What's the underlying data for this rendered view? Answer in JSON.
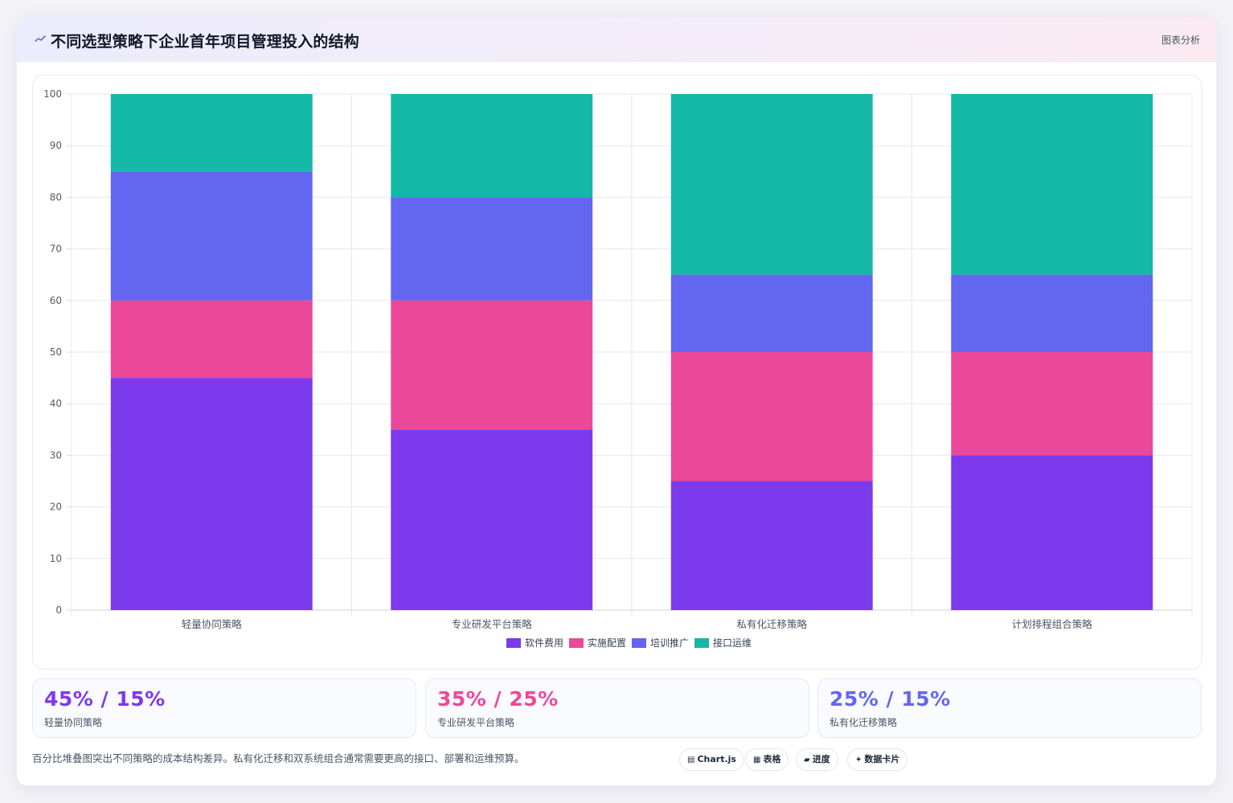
{
  "header": {
    "title": "不同选型策略下企业首年项目管理投入的结构",
    "tag": "图表分析"
  },
  "chart_data": {
    "type": "bar",
    "stacked": true,
    "categories": [
      "轻量协同策略",
      "专业研发平台策略",
      "私有化迁移策略",
      "计划排程组合策略"
    ],
    "series": [
      {
        "name": "软件费用",
        "color": "#7c3aed",
        "values": [
          45,
          35,
          25,
          30
        ]
      },
      {
        "name": "实施配置",
        "color": "#ec4899",
        "values": [
          15,
          25,
          25,
          20
        ]
      },
      {
        "name": "培训推广",
        "color": "#6366f1",
        "values": [
          25,
          20,
          15,
          15
        ]
      },
      {
        "name": "接口运维",
        "color": "#14b8a6",
        "values": [
          15,
          20,
          35,
          35
        ]
      }
    ],
    "ylim": [
      0,
      100
    ],
    "yticks": [
      0,
      10,
      20,
      30,
      40,
      50,
      60,
      70,
      80,
      90,
      100
    ],
    "grid": true,
    "legend": "bottom"
  },
  "stats": [
    {
      "value": "45% / 15%",
      "label": "轻量协同策略",
      "color": "#7c3aed"
    },
    {
      "value": "35% / 25%",
      "label": "专业研发平台策略",
      "color": "#ec4899"
    },
    {
      "value": "25% / 15%",
      "label": "私有化迁移策略",
      "color": "#6366f1"
    }
  ],
  "note": "百分比堆叠图突出不同策略的成本结构差异。私有化迁移和双系统组合通常需要更高的接口、部署和运维预算。",
  "chips": [
    {
      "icon": "▤",
      "label": "Chart.js"
    },
    {
      "icon": "▦",
      "label": "表格"
    },
    {
      "icon": "▰",
      "label": "进度"
    },
    {
      "icon": "✦",
      "label": "数据卡片"
    }
  ]
}
